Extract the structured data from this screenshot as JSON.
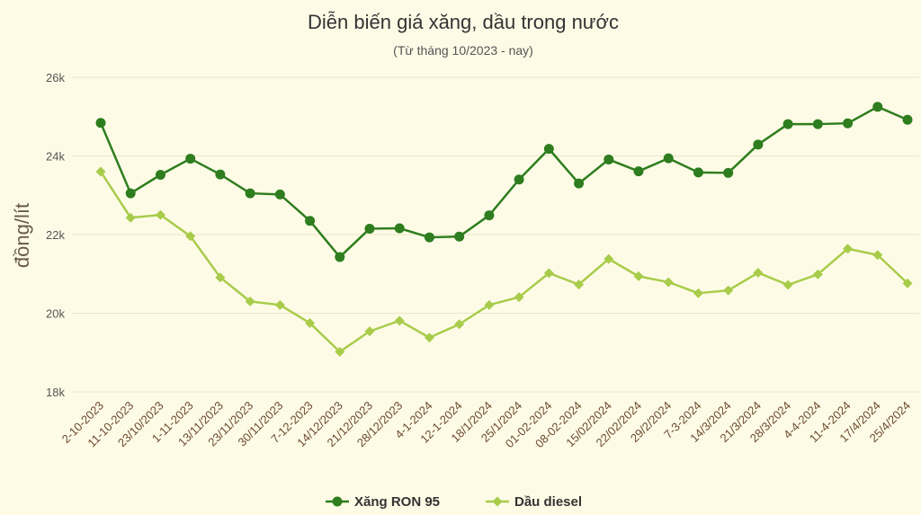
{
  "chart_data": {
    "type": "line",
    "title": "Diễn biến giá xăng, dầu trong nước",
    "subtitle": "(Từ tháng 10/2023 - nay)",
    "ylabel": "đồng/lít",
    "ylim": [
      18000,
      26000
    ],
    "yticks": [
      {
        "value": 18000,
        "label": "18k"
      },
      {
        "value": 20000,
        "label": "20k"
      },
      {
        "value": 22000,
        "label": "22k"
      },
      {
        "value": 24000,
        "label": "24k"
      },
      {
        "value": 26000,
        "label": "26k"
      }
    ],
    "grid": true,
    "legend_position": "bottom",
    "categories": [
      "2-10-2023",
      "11-10-2023",
      "23/10/2023",
      "1-11-2023",
      "13/11/2023",
      "23/11/2023",
      "30/11/2023",
      "7-12-2023",
      "14/12/2023",
      "21/12/2023",
      "28/12/2023",
      "4-1-2024",
      "12-1-2024",
      "18/1/2024",
      "25/1/2024",
      "01-02-2024",
      "08-02-2024",
      "15/02/2024",
      "22/02/2024",
      "29/2/2024",
      "7-3-2024",
      "14/3/2024",
      "21/3/2024",
      "28/3/2024",
      "4-4-2024",
      "11-4-2024",
      "17/4/2024",
      "25/4/2024"
    ],
    "series": [
      {
        "name": "Xăng RON 95",
        "color": "#2e7d1e",
        "values": [
          24840,
          23050,
          23520,
          23930,
          23530,
          23050,
          23020,
          22350,
          21430,
          22150,
          22160,
          21930,
          21950,
          22490,
          23400,
          24180,
          23300,
          23910,
          23610,
          23940,
          23580,
          23570,
          24290,
          24810,
          24810,
          24830,
          25250,
          24920
        ]
      },
      {
        "name": "Dầu diesel",
        "color": "#a8cc4a",
        "values": [
          23600,
          22430,
          22500,
          21960,
          20910,
          20300,
          20210,
          19750,
          19020,
          19540,
          19810,
          19380,
          19720,
          20210,
          20410,
          21020,
          20730,
          21380,
          20940,
          20790,
          20510,
          20580,
          21030,
          20720,
          20990,
          21640,
          21480,
          20760
        ]
      }
    ]
  }
}
